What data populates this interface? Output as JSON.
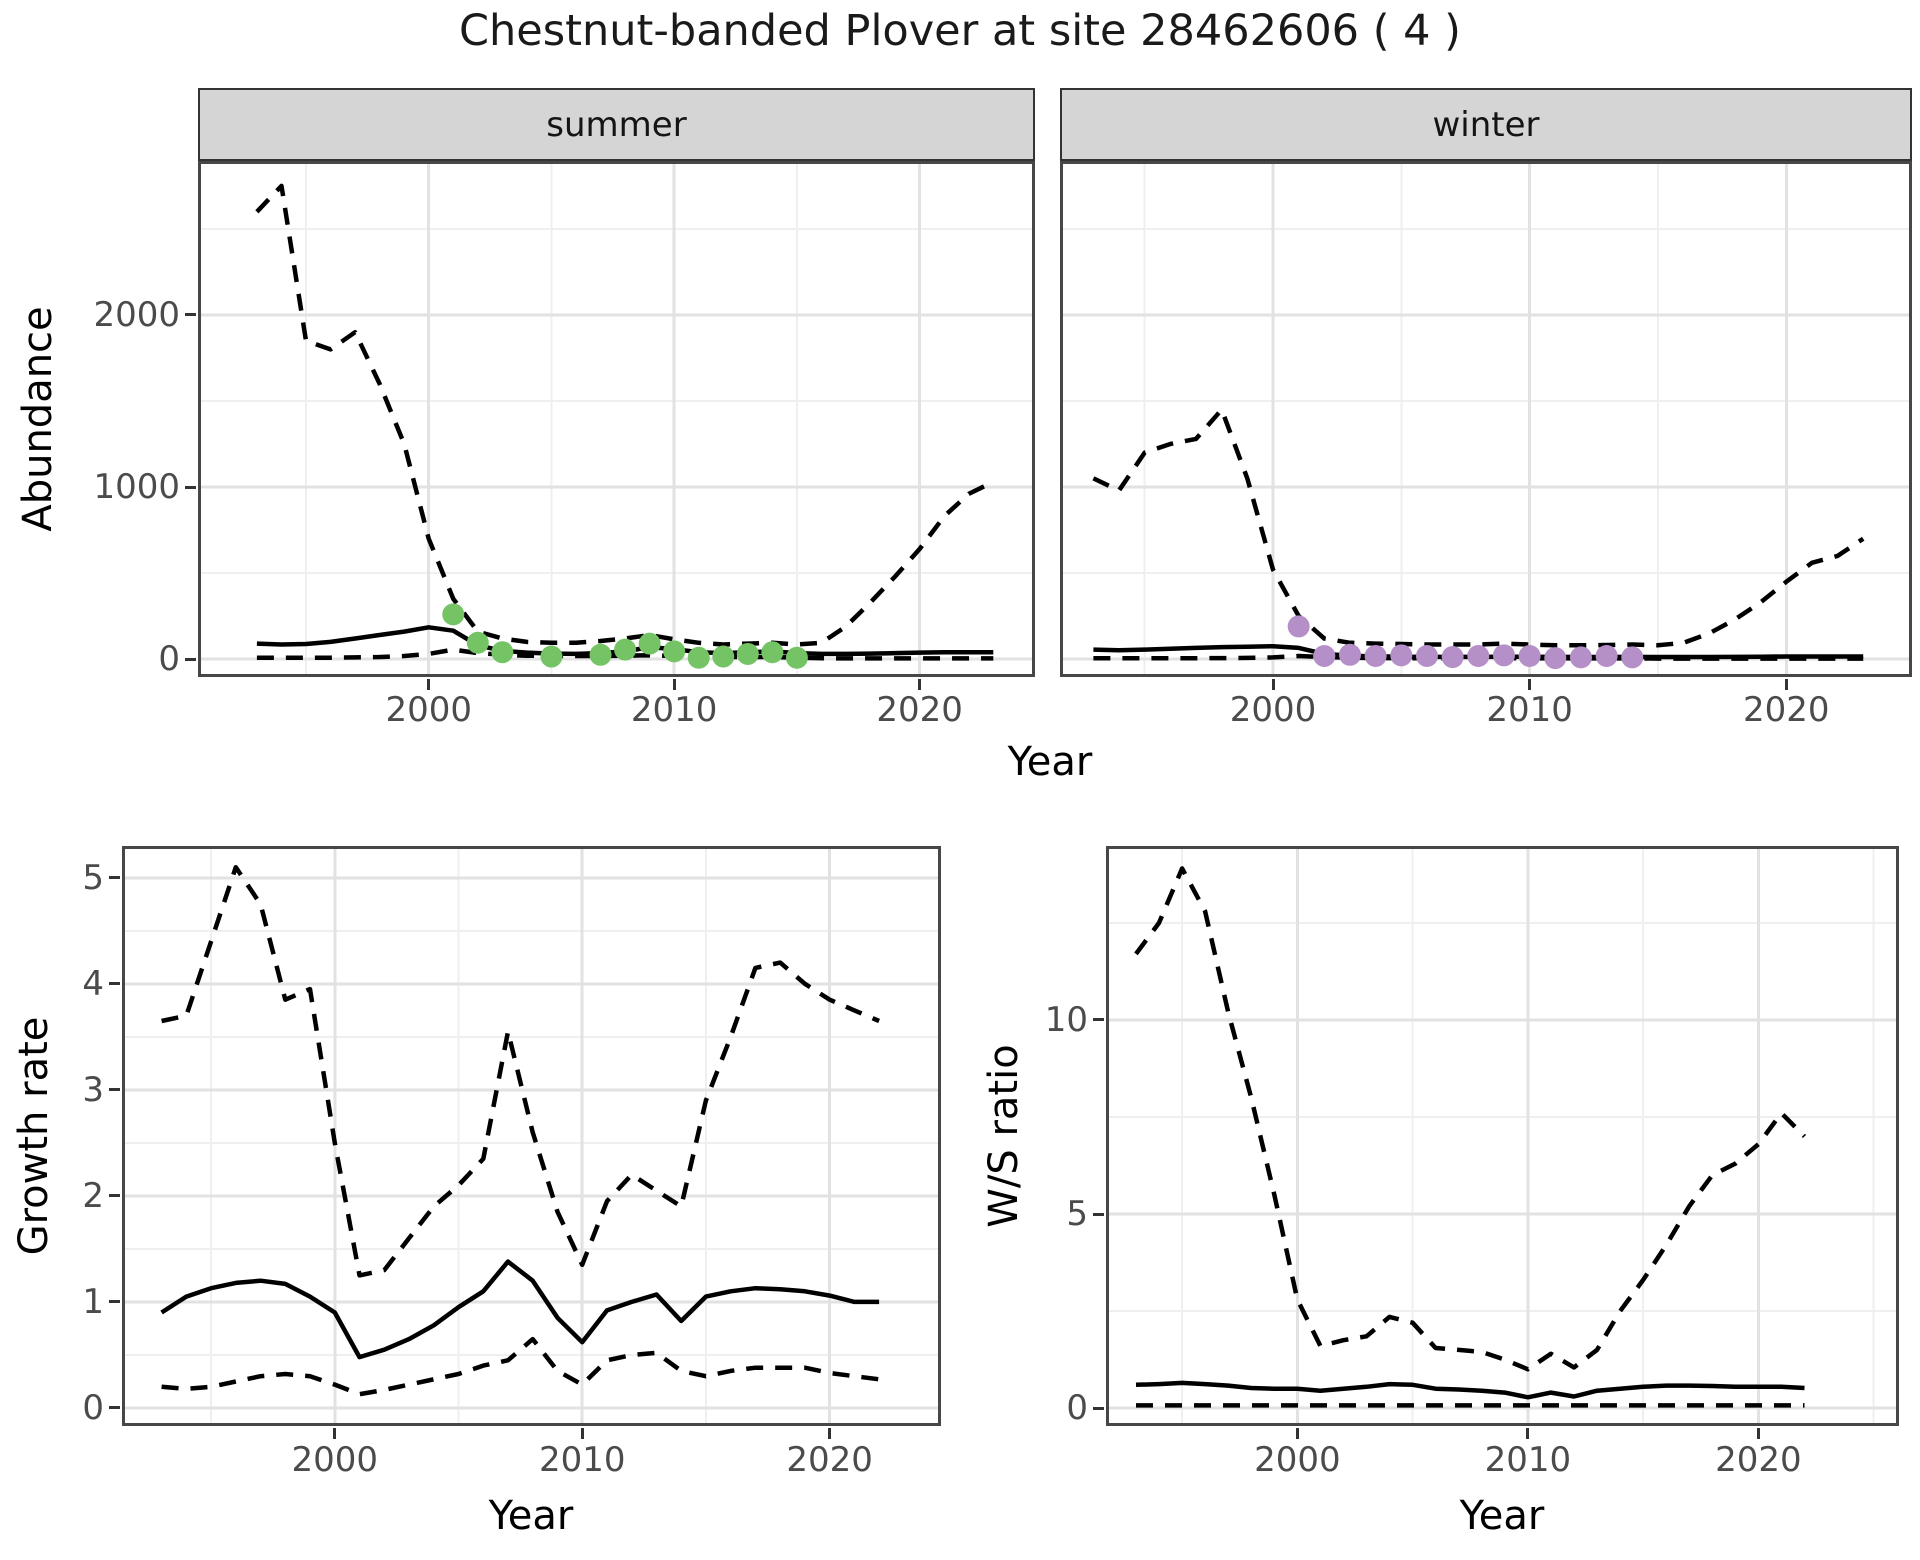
{
  "title": "Chestnut-banded Plover at site 28462606 ( 4 )",
  "palette": {
    "summer_point": "#74c365",
    "winter_point": "#b48fc8",
    "line": "#000000",
    "grid_major": "#e2e2e2",
    "grid_minor": "#efefef",
    "strip_bg": "#d5d5d5",
    "panel_border": "#474747",
    "tick_label": "#4b4b4b",
    "title_text": "#1a1a1a"
  },
  "chart_data": [
    {
      "id": "abundance-summer",
      "type": "line",
      "facet_label": "summer",
      "xlabel": "Year",
      "ylabel": "Abundance",
      "xlim": [
        1991,
        2025
      ],
      "ylim": [
        -104,
        2895
      ],
      "xticks": [
        2000,
        2010,
        2020
      ],
      "xticks_minor": [
        1995,
        2005,
        2015
      ],
      "yticks": [
        0,
        1000,
        2000
      ],
      "yticks_minor": [
        500,
        1500,
        2500
      ],
      "grid": true,
      "legend": "none",
      "x": [
        1993,
        1994,
        1995,
        1996,
        1997,
        1998,
        1999,
        2000,
        2001,
        2002,
        2003,
        2004,
        2005,
        2006,
        2007,
        2008,
        2009,
        2010,
        2011,
        2012,
        2013,
        2014,
        2015,
        2016,
        2017,
        2018,
        2019,
        2020,
        2021,
        2022,
        2023
      ],
      "series": [
        {
          "name": "upper_ci",
          "style": "dashed",
          "values": [
            2600,
            2750,
            1850,
            1800,
            1900,
            1600,
            1250,
            700,
            350,
            160,
            120,
            100,
            95,
            95,
            105,
            120,
            140,
            115,
            95,
            85,
            90,
            95,
            85,
            95,
            190,
            330,
            480,
            640,
            830,
            960,
            1030
          ]
        },
        {
          "name": "median",
          "style": "solid",
          "values": [
            90,
            85,
            88,
            100,
            120,
            140,
            160,
            185,
            165,
            80,
            48,
            38,
            32,
            30,
            35,
            45,
            70,
            58,
            40,
            35,
            40,
            45,
            35,
            30,
            30,
            32,
            35,
            38,
            40,
            40,
            40
          ]
        },
        {
          "name": "lower_ci",
          "style": "dashed",
          "values": [
            8,
            8,
            8,
            8,
            10,
            12,
            18,
            30,
            55,
            35,
            25,
            20,
            18,
            18,
            18,
            20,
            22,
            18,
            14,
            12,
            12,
            12,
            8,
            5,
            4,
            4,
            4,
            4,
            4,
            4,
            4
          ]
        }
      ],
      "points": {
        "name": "observed_counts_summer",
        "color": "#74c365",
        "x": [
          2001,
          2002,
          2003,
          2005,
          2007,
          2008,
          2009,
          2010,
          2011,
          2012,
          2013,
          2014,
          2015
        ],
        "y": [
          260,
          95,
          40,
          15,
          25,
          55,
          90,
          45,
          8,
          15,
          30,
          40,
          8
        ]
      }
    },
    {
      "id": "abundance-winter",
      "type": "line",
      "facet_label": "winter",
      "xlabel": "Year",
      "ylabel": "Abundance",
      "xlim": [
        1991,
        2025
      ],
      "ylim": [
        -104,
        2895
      ],
      "xticks": [
        2000,
        2010,
        2020
      ],
      "xticks_minor": [
        1995,
        2005,
        2015
      ],
      "yticks": [
        0,
        1000,
        2000
      ],
      "yticks_minor": [
        500,
        1500,
        2500
      ],
      "grid": true,
      "legend": "none",
      "x": [
        1993,
        1994,
        1995,
        1996,
        1997,
        1998,
        1999,
        2000,
        2001,
        2002,
        2003,
        2004,
        2005,
        2006,
        2007,
        2008,
        2009,
        2010,
        2011,
        2012,
        2013,
        2014,
        2015,
        2016,
        2017,
        2018,
        2019,
        2020,
        2021,
        2022,
        2023
      ],
      "series": [
        {
          "name": "upper_ci",
          "style": "dashed",
          "values": [
            1050,
            980,
            1200,
            1250,
            1280,
            1450,
            1050,
            520,
            250,
            120,
            95,
            90,
            88,
            85,
            85,
            85,
            90,
            85,
            80,
            80,
            82,
            85,
            80,
            95,
            150,
            230,
            330,
            450,
            560,
            600,
            700
          ]
        },
        {
          "name": "median",
          "style": "solid",
          "values": [
            55,
            52,
            55,
            60,
            65,
            70,
            72,
            75,
            65,
            30,
            20,
            16,
            14,
            13,
            13,
            13,
            14,
            14,
            13,
            12,
            12,
            13,
            12,
            12,
            12,
            13,
            14,
            15,
            15,
            15,
            15
          ]
        },
        {
          "name": "lower_ci",
          "style": "dashed",
          "values": [
            5,
            5,
            5,
            5,
            5,
            6,
            7,
            10,
            18,
            12,
            8,
            6,
            5,
            5,
            5,
            5,
            5,
            5,
            4,
            4,
            4,
            4,
            3,
            3,
            3,
            3,
            3,
            3,
            3,
            3,
            3
          ]
        }
      ],
      "points": {
        "name": "observed_counts_winter",
        "color": "#b48fc8",
        "x": [
          2001,
          2002,
          2003,
          2004,
          2005,
          2006,
          2007,
          2008,
          2009,
          2010,
          2011,
          2012,
          2013,
          2014
        ],
        "y": [
          190,
          18,
          25,
          18,
          22,
          18,
          12,
          18,
          22,
          18,
          6,
          10,
          18,
          10
        ]
      }
    },
    {
      "id": "growth-rate",
      "type": "line",
      "facet_label": "",
      "xlabel": "Year",
      "ylabel": "Growth rate",
      "xlim": [
        1991,
        2025
      ],
      "ylim": [
        -0.17,
        5.3
      ],
      "xticks": [
        2000,
        2010,
        2020
      ],
      "xticks_minor": [
        1995,
        2005,
        2015
      ],
      "yticks": [
        0,
        1,
        2,
        3,
        4,
        5
      ],
      "yticks_minor": [
        0.5,
        1.5,
        2.5,
        3.5,
        4.5
      ],
      "grid": true,
      "legend": "none",
      "x": [
        1993,
        1994,
        1995,
        1996,
        1997,
        1998,
        1999,
        2000,
        2001,
        2002,
        2003,
        2004,
        2005,
        2006,
        2007,
        2008,
        2009,
        2010,
        2011,
        2012,
        2013,
        2014,
        2015,
        2016,
        2017,
        2018,
        2019,
        2020,
        2021,
        2022
      ],
      "series": [
        {
          "name": "upper_ci",
          "style": "dashed",
          "values": [
            3.65,
            3.7,
            4.4,
            5.1,
            4.75,
            3.85,
            3.95,
            2.5,
            1.25,
            1.3,
            1.6,
            1.9,
            2.1,
            2.35,
            3.55,
            2.6,
            1.85,
            1.35,
            1.95,
            2.2,
            2.05,
            1.9,
            2.9,
            3.5,
            4.15,
            4.2,
            4.0,
            3.85,
            3.75,
            3.65
          ]
        },
        {
          "name": "median",
          "style": "solid",
          "values": [
            0.9,
            1.05,
            1.13,
            1.18,
            1.2,
            1.17,
            1.05,
            0.9,
            0.48,
            0.55,
            0.65,
            0.78,
            0.95,
            1.1,
            1.38,
            1.2,
            0.85,
            0.62,
            0.92,
            1.0,
            1.07,
            0.82,
            1.05,
            1.1,
            1.13,
            1.12,
            1.1,
            1.06,
            1.0,
            1.0
          ]
        },
        {
          "name": "lower_ci",
          "style": "dashed",
          "values": [
            0.2,
            0.18,
            0.2,
            0.25,
            0.3,
            0.32,
            0.3,
            0.22,
            0.13,
            0.17,
            0.22,
            0.27,
            0.32,
            0.4,
            0.45,
            0.65,
            0.35,
            0.22,
            0.45,
            0.5,
            0.52,
            0.35,
            0.3,
            0.35,
            0.38,
            0.38,
            0.38,
            0.33,
            0.3,
            0.27
          ]
        }
      ]
    },
    {
      "id": "ws-ratio",
      "type": "line",
      "facet_label": "",
      "xlabel": "Year",
      "ylabel": "W/S ratio",
      "xlim": [
        1991,
        2026
      ],
      "ylim": [
        -0.46,
        14.48
      ],
      "xticks": [
        2000,
        2010,
        2020
      ],
      "xticks_minor": [
        1995,
        2005,
        2015,
        2025
      ],
      "yticks": [
        0,
        5,
        10
      ],
      "yticks_minor": [
        2.5,
        7.5,
        12.5
      ],
      "grid": true,
      "legend": "none",
      "x": [
        1993,
        1994,
        1995,
        1996,
        1997,
        1998,
        1999,
        2000,
        2001,
        2002,
        2003,
        2004,
        2005,
        2006,
        2007,
        2008,
        2009,
        2010,
        2011,
        2012,
        2013,
        2014,
        2015,
        2016,
        2017,
        2018,
        2019,
        2020,
        2021,
        2022
      ],
      "series": [
        {
          "name": "upper_ci",
          "style": "dashed",
          "values": [
            11.7,
            12.5,
            13.9,
            12.8,
            10.2,
            8.0,
            5.5,
            2.8,
            1.6,
            1.75,
            1.85,
            2.35,
            2.2,
            1.55,
            1.5,
            1.45,
            1.25,
            1.0,
            1.4,
            1.05,
            1.5,
            2.5,
            3.3,
            4.2,
            5.2,
            6.0,
            6.3,
            6.8,
            7.6,
            7.0
          ]
        },
        {
          "name": "median",
          "style": "solid",
          "values": [
            0.6,
            0.62,
            0.65,
            0.62,
            0.58,
            0.52,
            0.5,
            0.5,
            0.45,
            0.5,
            0.55,
            0.62,
            0.6,
            0.5,
            0.48,
            0.45,
            0.4,
            0.28,
            0.4,
            0.3,
            0.45,
            0.5,
            0.55,
            0.58,
            0.58,
            0.57,
            0.55,
            0.55,
            0.55,
            0.52
          ]
        },
        {
          "name": "lower_ci",
          "style": "dashed",
          "values": [
            0.07,
            0.07,
            0.07,
            0.07,
            0.07,
            0.07,
            0.07,
            0.07,
            0.07,
            0.07,
            0.07,
            0.07,
            0.07,
            0.07,
            0.07,
            0.07,
            0.07,
            0.07,
            0.07,
            0.07,
            0.07,
            0.07,
            0.07,
            0.07,
            0.07,
            0.07,
            0.07,
            0.07,
            0.07,
            0.07
          ]
        }
      ]
    }
  ]
}
